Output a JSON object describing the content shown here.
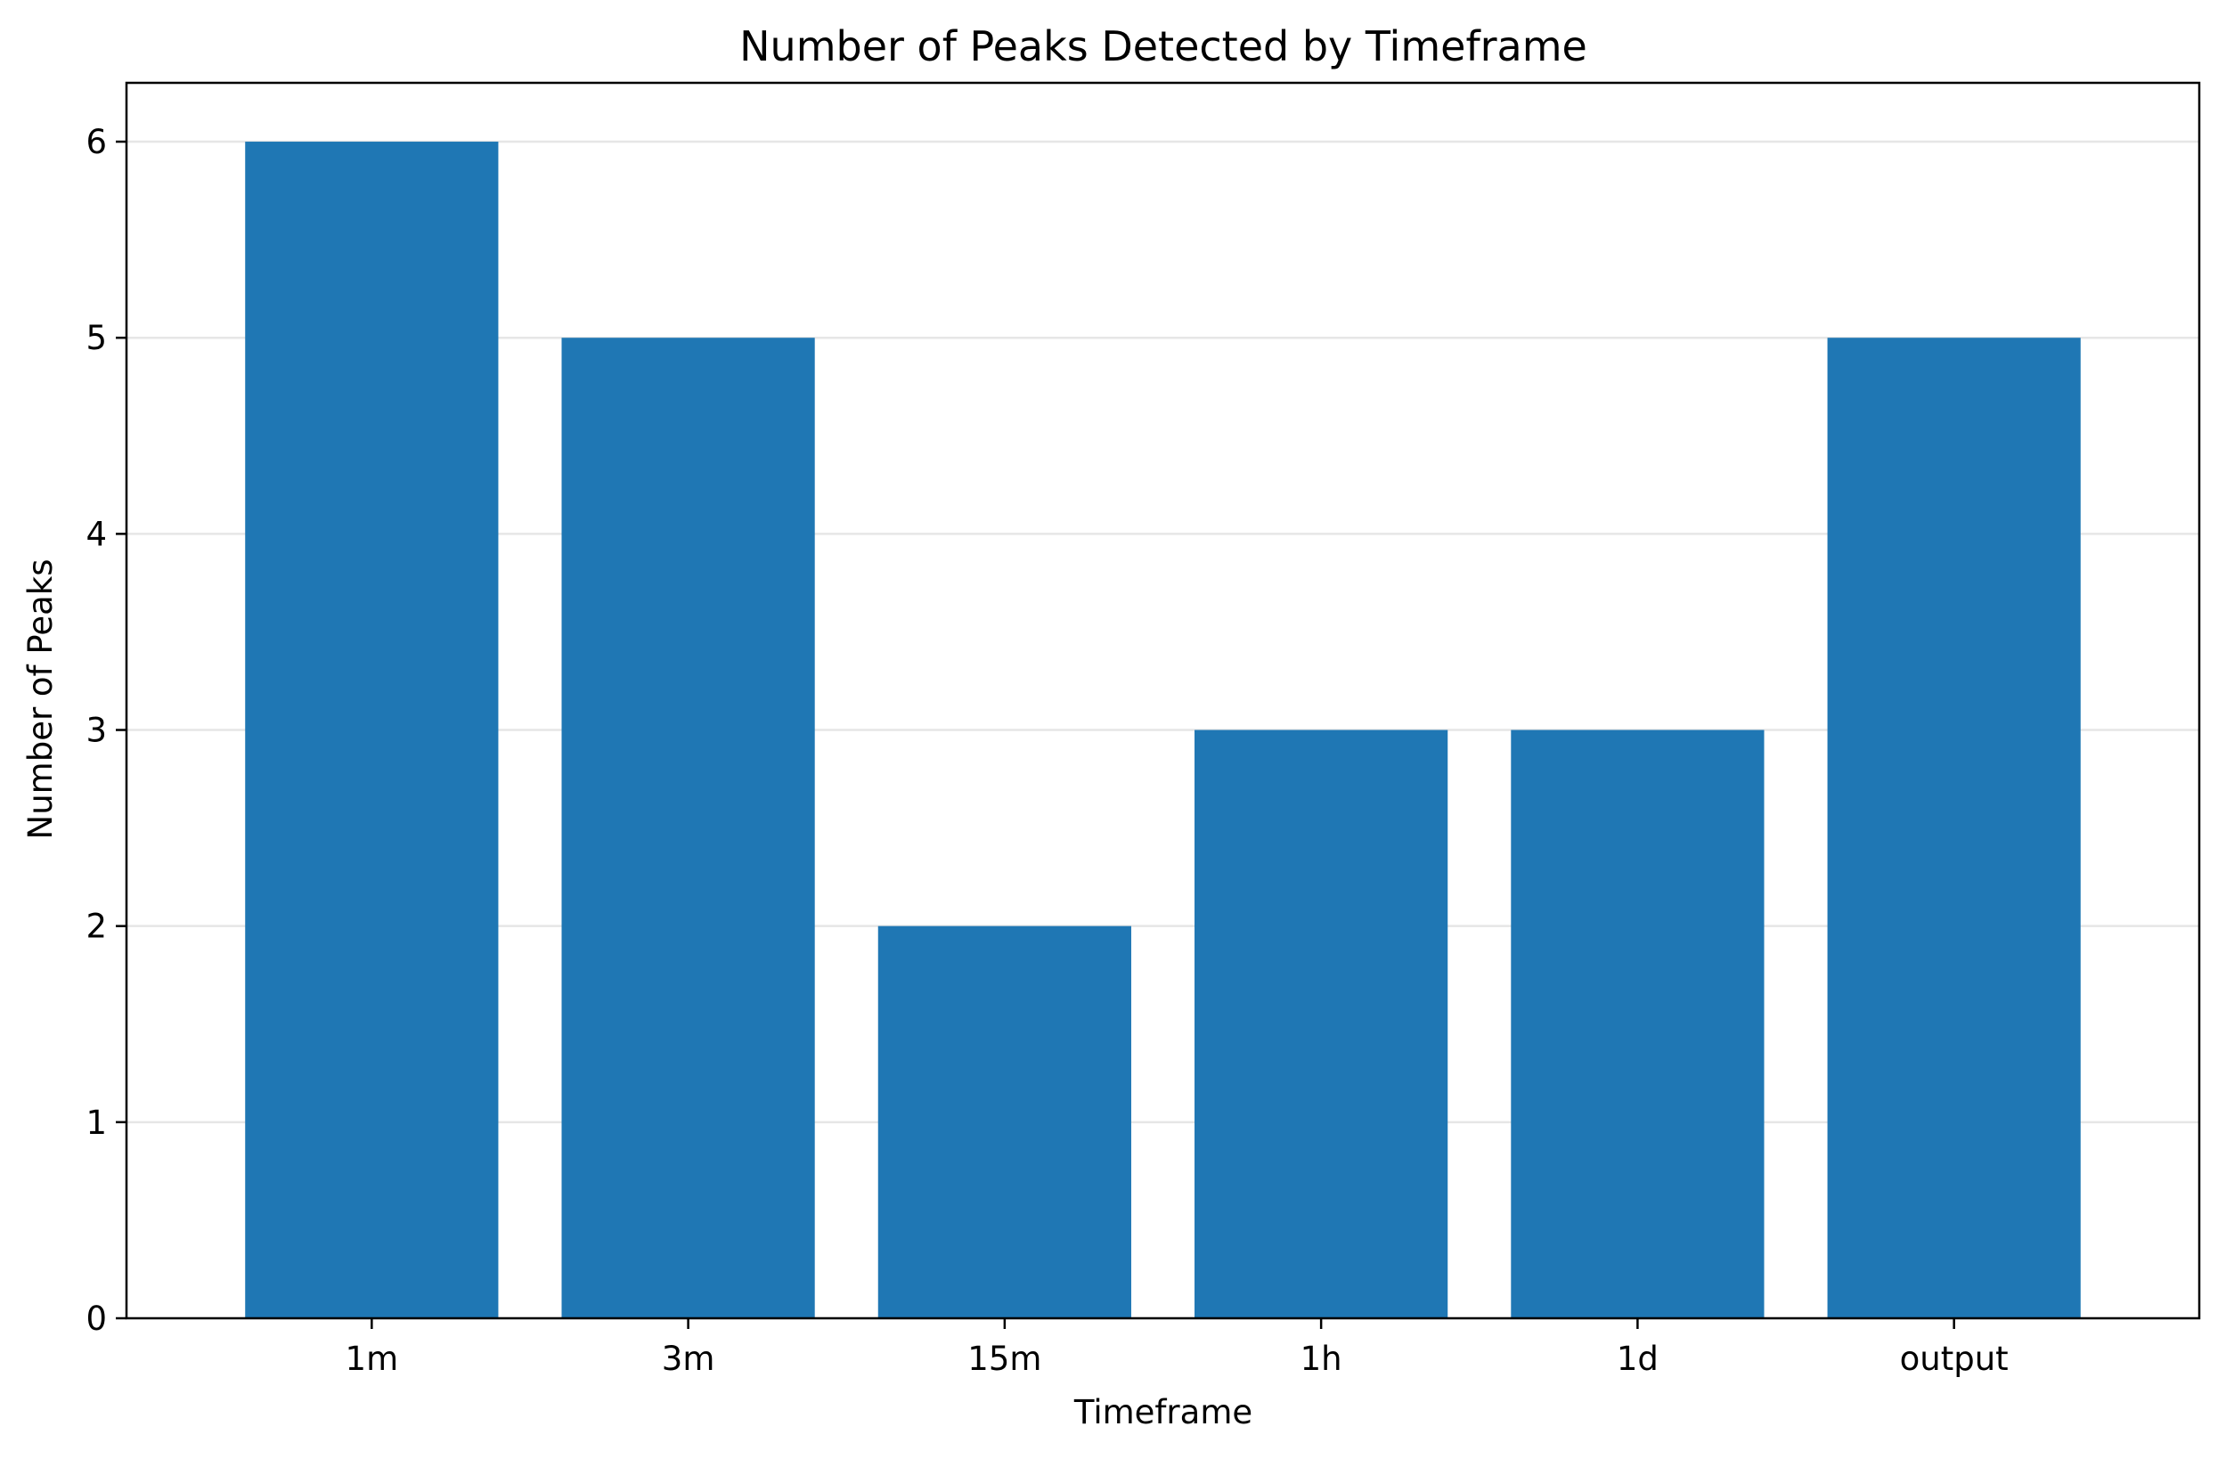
{
  "chart_data": {
    "type": "bar",
    "title": "Number of Peaks Detected by Timeframe",
    "xlabel": "Timeframe",
    "ylabel": "Number of Peaks",
    "categories": [
      "1m",
      "3m",
      "15m",
      "1h",
      "1d",
      "output"
    ],
    "values": [
      6,
      5,
      2,
      3,
      3,
      5
    ],
    "ylim": [
      0,
      6.3
    ],
    "yticks": [
      0,
      1,
      2,
      3,
      4,
      5,
      6
    ],
    "grid": "y-major",
    "legend": "none",
    "colors": {
      "bar": "#1f77b4",
      "grid": "#e6e6e6",
      "axis": "#000000"
    }
  }
}
